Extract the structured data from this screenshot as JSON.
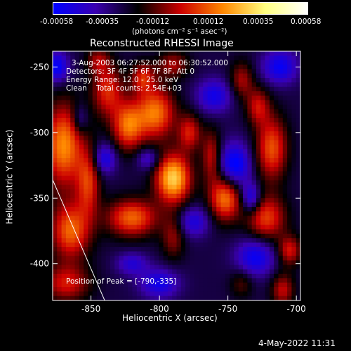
{
  "colorbar": {
    "ticks": [
      "-0.00058",
      "-0.00035",
      "-0.00012",
      "0.00012",
      "0.00035",
      "0.00058"
    ],
    "units": "(photons cm⁻² s⁻¹ asec⁻²)",
    "stops": [
      "#0000ff",
      "#3a00b0",
      "#000000",
      "#cc0000",
      "#ff8800",
      "#ffff80",
      "#ffffff"
    ]
  },
  "chart_data": {
    "type": "heatmap",
    "title": "Reconstructed RHESSI Image",
    "xlabel": "Heliocentric X (arcsec)",
    "ylabel": "Heliocentric Y (arcsec)",
    "xlim": [
      -878,
      -697
    ],
    "ylim": [
      -428,
      -238
    ],
    "x_ticks": [
      -850,
      -800,
      -750,
      -700
    ],
    "y_ticks": [
      -250,
      -300,
      -350,
      -400
    ],
    "x_tick_labels": [
      "-850",
      "-800",
      "-750",
      "-700"
    ],
    "y_tick_labels": [
      "-250",
      "-300",
      "-350",
      "-400"
    ],
    "peak_position": [
      -790,
      -335
    ],
    "limb_line": [
      [
        -878,
        -336
      ],
      [
        -840,
        -428
      ]
    ],
    "blobs": [
      {
        "x": -790,
        "y": -335,
        "amp": 1.0,
        "sx": 9,
        "sy": 13
      },
      {
        "x": -803,
        "y": -285,
        "amp": 0.75,
        "sx": 10,
        "sy": 14
      },
      {
        "x": -823,
        "y": -295,
        "amp": 0.7,
        "sx": 8,
        "sy": 13
      },
      {
        "x": -838,
        "y": -268,
        "amp": 0.55,
        "sx": 8,
        "sy": 14
      },
      {
        "x": -812,
        "y": -258,
        "amp": 0.5,
        "sx": 6,
        "sy": 8
      },
      {
        "x": -820,
        "y": -365,
        "amp": 0.7,
        "sx": 13,
        "sy": 10
      },
      {
        "x": -852,
        "y": -338,
        "amp": 0.55,
        "sx": 6,
        "sy": 18
      },
      {
        "x": -870,
        "y": -310,
        "amp": 0.8,
        "sx": 10,
        "sy": 22
      },
      {
        "x": -865,
        "y": -375,
        "amp": 0.7,
        "sx": 10,
        "sy": 15
      },
      {
        "x": -868,
        "y": -415,
        "amp": 0.5,
        "sx": 12,
        "sy": 10
      },
      {
        "x": -790,
        "y": -380,
        "amp": 0.35,
        "sx": 6,
        "sy": 12
      },
      {
        "x": -778,
        "y": -300,
        "amp": 0.5,
        "sx": 6,
        "sy": 10
      },
      {
        "x": -762,
        "y": -318,
        "amp": 0.45,
        "sx": 5,
        "sy": 14
      },
      {
        "x": -752,
        "y": -350,
        "amp": 0.75,
        "sx": 8,
        "sy": 12
      },
      {
        "x": -740,
        "y": -260,
        "amp": 0.4,
        "sx": 6,
        "sy": 10
      },
      {
        "x": -728,
        "y": -280,
        "amp": 0.45,
        "sx": 6,
        "sy": 10
      },
      {
        "x": -718,
        "y": -312,
        "amp": 0.65,
        "sx": 8,
        "sy": 17
      },
      {
        "x": -722,
        "y": -365,
        "amp": 0.6,
        "sx": 10,
        "sy": 12
      },
      {
        "x": -705,
        "y": -390,
        "amp": 0.5,
        "sx": 6,
        "sy": 8
      },
      {
        "x": -710,
        "y": -420,
        "amp": 0.45,
        "sx": 6,
        "sy": 9
      },
      {
        "x": -740,
        "y": -415,
        "amp": 0.25,
        "sx": 6,
        "sy": 8
      },
      {
        "x": -845,
        "y": -245,
        "amp": 0.35,
        "sx": 6,
        "sy": 7
      },
      {
        "x": -790,
        "y": -248,
        "amp": 0.4,
        "sx": 8,
        "sy": 7
      },
      {
        "x": -875,
        "y": -250,
        "amp": -0.55,
        "sx": 6,
        "sy": 8
      },
      {
        "x": -840,
        "y": -320,
        "amp": -0.45,
        "sx": 6,
        "sy": 8
      },
      {
        "x": -808,
        "y": -320,
        "amp": -0.35,
        "sx": 6,
        "sy": 6
      },
      {
        "x": -745,
        "y": -325,
        "amp": -0.6,
        "sx": 8,
        "sy": 12
      },
      {
        "x": -760,
        "y": -272,
        "amp": -0.45,
        "sx": 9,
        "sy": 9
      },
      {
        "x": -712,
        "y": -250,
        "amp": -0.5,
        "sx": 9,
        "sy": 9
      },
      {
        "x": -730,
        "y": -395,
        "amp": -0.5,
        "sx": 10,
        "sy": 10
      },
      {
        "x": -800,
        "y": -415,
        "amp": -0.45,
        "sx": 10,
        "sy": 8
      },
      {
        "x": -775,
        "y": -368,
        "amp": -0.4,
        "sx": 8,
        "sy": 8
      },
      {
        "x": -820,
        "y": -400,
        "amp": -0.35,
        "sx": 8,
        "sy": 6
      },
      {
        "x": -733,
        "y": -350,
        "amp": -0.5,
        "sx": 5,
        "sy": 8
      },
      {
        "x": -858,
        "y": -290,
        "amp": -0.3,
        "sx": 4,
        "sy": 8
      }
    ]
  },
  "overlay": {
    "time_range": "3-Aug-2003 06:27:52.000 to 06:30:52.000",
    "detectors": "Detectors: 3F 4F 5F 6F 7F 8F, Att 0",
    "energy_range": "Energy Range: 12.0 - 25.0 keV",
    "clean_info": "Clean    Total counts: 2.54E+03",
    "peak_label": "Position of Peak = [-790,-335]"
  },
  "footer": {
    "timestamp": "4-May-2022 11:31"
  }
}
